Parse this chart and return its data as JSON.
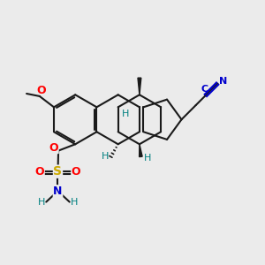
{
  "background_color": "#ebebeb",
  "bond_color": "#1a1a1a",
  "bond_width": 1.5,
  "figsize": [
    3.0,
    3.0
  ],
  "dpi": 100,
  "xlim": [
    0,
    10
  ],
  "ylim": [
    0,
    10
  ],
  "colors": {
    "bond": "#1a1a1a",
    "O": "#ff0000",
    "S": "#ccaa00",
    "N_blue": "#0000cd",
    "N_teal": "#008080",
    "H_teal": "#008080",
    "C_blue": "#0000cd",
    "nitrile": "#0000cd"
  }
}
